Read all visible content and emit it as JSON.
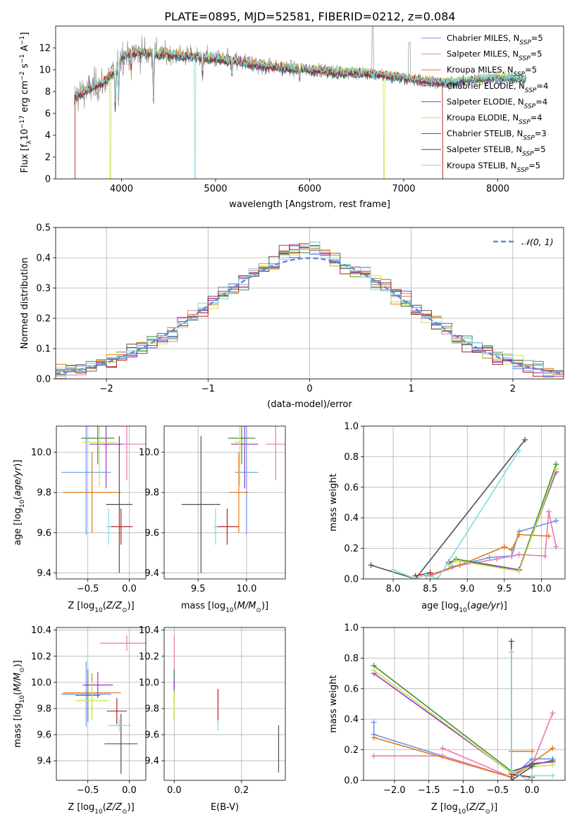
{
  "title": "PLATE=0895, MJD=52581, FIBERID=0212, z=0.084",
  "colors": {
    "chabrier_miles": "#6495ed",
    "salpeter_miles": "#e879b4",
    "kroupa_miles": "#e07b20",
    "chabrier_elodie": "#3e8e3e",
    "salpeter_elodie": "#9932cc",
    "kroupa_elodie": "#c8e64a",
    "chabrier_stelib": "#505050",
    "salpeter_stelib": "#b22222",
    "kroupa_stelib": "#7fdbde",
    "data": "#808080",
    "gauss": "#5b8fd9"
  },
  "chart_data": [
    {
      "panel": "spectrum",
      "type": "line",
      "xlabel": "wavelength [Angstrom, rest frame]",
      "ylabel": "Flux [f_λ 10^-17 erg cm^-2 s^-1 A^-1]",
      "xlim": [
        3300,
        8700
      ],
      "ylim": [
        0,
        14
      ],
      "xticks": [
        4000,
        5000,
        6000,
        7000,
        8000
      ],
      "yticks": [
        0,
        2,
        4,
        6,
        8,
        10,
        12
      ],
      "legend_position": "top-right",
      "legend": [
        {
          "base": "Chabrier MILES, N",
          "sub": "SSP",
          "tail": "=5",
          "color": "chabrier_miles"
        },
        {
          "base": "Salpeter MILES, N",
          "sub": "SSP",
          "tail": "=5",
          "color": "salpeter_miles"
        },
        {
          "base": "Kroupa MILES, N",
          "sub": "SSP",
          "tail": "=5",
          "color": "kroupa_miles"
        },
        {
          "base": "Chabrier ELODIE, N",
          "sub": "SSP",
          "tail": "=4",
          "color": "chabrier_elodie"
        },
        {
          "base": "Salpeter ELODIE, N",
          "sub": "SSP",
          "tail": "=4",
          "color": "salpeter_elodie"
        },
        {
          "base": "Kroupa ELODIE, N",
          "sub": "SSP",
          "tail": "=4",
          "color": "kroupa_elodie"
        },
        {
          "base": "Chabrier STELIB, N",
          "sub": "SSP",
          "tail": "=3",
          "color": "chabrier_stelib"
        },
        {
          "base": "Salpeter STELIB, N",
          "sub": "SSP",
          "tail": "=5",
          "color": "salpeter_stelib"
        },
        {
          "base": "Kroupa STELIB, N",
          "sub": "SSP",
          "tail": "=5",
          "color": "kroupa_stelib"
        }
      ],
      "continuum": {
        "x": [
          3500,
          3600,
          3800,
          3950,
          4000,
          4100,
          4300,
          4500,
          4800,
          5000,
          5200,
          5500,
          5800,
          6000,
          6300,
          6600,
          6900,
          7200,
          7400,
          7600,
          8000,
          8300
        ],
        "y": [
          7.5,
          8.0,
          8.8,
          10.0,
          11.2,
          11.6,
          11.5,
          11.4,
          11.2,
          11.0,
          10.8,
          10.4,
          10.1,
          10.0,
          9.8,
          9.7,
          9.4,
          9.0,
          8.8,
          9.0,
          9.3,
          9.2
        ]
      },
      "absorption_lines": [
        {
          "x": 3934,
          "depth": 4.0
        },
        {
          "x": 3969,
          "depth": 3.0
        },
        {
          "x": 4102,
          "depth": 2.0
        },
        {
          "x": 4340,
          "depth": 4.5
        },
        {
          "x": 4861,
          "depth": 2.0
        },
        {
          "x": 5175,
          "depth": 1.2
        },
        {
          "x": 5893,
          "depth": 1.0
        }
      ],
      "model_dropouts": [
        {
          "x": 3500,
          "series": [
            "kroupa_miles",
            "salpeter_stelib"
          ]
        },
        {
          "x": 3880,
          "series": [
            "kroupa_elodie"
          ]
        },
        {
          "x": 4780,
          "series": [
            "kroupa_stelib"
          ]
        },
        {
          "x": 6790,
          "series": [
            "kroupa_elodie"
          ]
        },
        {
          "x": 7420,
          "series": [
            "kroupa_miles",
            "salpeter_stelib"
          ]
        }
      ]
    },
    {
      "panel": "residuals",
      "type": "histogram",
      "xlabel": "(data-model)/error",
      "ylabel": "Normed distribution",
      "xlim": [
        -2.5,
        2.5
      ],
      "ylim": [
        0,
        0.5
      ],
      "xticks": [
        -2,
        -1,
        0,
        1,
        2
      ],
      "yticks": [
        0.0,
        0.1,
        0.2,
        0.3,
        0.4,
        0.5
      ],
      "bin_width": 0.1,
      "reference": {
        "label": "𝒩(0, 1)",
        "mean": 0,
        "sigma": 1
      },
      "legend_position": "top-right"
    },
    {
      "panel": "age-vs-Z",
      "type": "errorbar",
      "xlabel": "Z [log10(Z/Z☉)]",
      "ylabel": "age [log10(age/yr)]",
      "xlim": [
        -0.88,
        0.2
      ],
      "ylim": [
        9.37,
        10.13
      ],
      "xticks": [
        -0.5,
        0.0
      ],
      "yticks": [
        9.4,
        9.6,
        9.8,
        10.0
      ],
      "points": [
        {
          "s": "chabrier_miles",
          "x": -0.52,
          "xerr": 0.3,
          "y": 9.9,
          "yerr": 0.31
        },
        {
          "s": "salpeter_miles",
          "x": -0.03,
          "xerr": 0.32,
          "y": 10.04,
          "yerr": 0.18
        },
        {
          "s": "kroupa_miles",
          "x": -0.45,
          "xerr": 0.35,
          "y": 9.8,
          "yerr": 0.2
        },
        {
          "s": "chabrier_elodie",
          "x": -0.38,
          "xerr": 0.2,
          "y": 10.07,
          "yerr": 0.13
        },
        {
          "s": "salpeter_elodie",
          "x": -0.28,
          "xerr": 0.2,
          "y": 10.04,
          "yerr": 0.22
        },
        {
          "s": "kroupa_elodie",
          "x": -0.36,
          "xerr": 0.2,
          "y": 10.05,
          "yerr": 0.22
        },
        {
          "s": "chabrier_stelib",
          "x": -0.12,
          "xerr": 0.16,
          "y": 9.74,
          "yerr": 0.34
        },
        {
          "s": "salpeter_stelib",
          "x": -0.1,
          "xerr": 0.14,
          "y": 9.63,
          "yerr": 0.09
        },
        {
          "s": "kroupa_stelib",
          "x": -0.25,
          "xerr": 0.03,
          "y": 9.63,
          "yerr": 0.09
        }
      ]
    },
    {
      "panel": "age-vs-mass",
      "type": "errorbar",
      "xlabel": "mass [log10(M/M☉)]",
      "ylabel": "",
      "xlim": [
        9.15,
        10.4
      ],
      "ylim": [
        9.37,
        10.13
      ],
      "xticks": [
        9.5,
        10.0
      ],
      "yticks": [
        9.4,
        9.6,
        9.8,
        10.0
      ],
      "points": [
        {
          "s": "chabrier_miles",
          "x": 10.0,
          "xerr": 0.12,
          "y": 9.9,
          "yerr": 0.31
        },
        {
          "s": "salpeter_miles",
          "x": 10.3,
          "xerr": 0.1,
          "y": 10.04,
          "yerr": 0.18
        },
        {
          "s": "kroupa_miles",
          "x": 9.92,
          "xerr": 0.1,
          "y": 9.8,
          "yerr": 0.2
        },
        {
          "s": "chabrier_elodie",
          "x": 9.95,
          "xerr": 0.14,
          "y": 10.07,
          "yerr": 0.13
        },
        {
          "s": "salpeter_elodie",
          "x": 9.98,
          "xerr": 0.14,
          "y": 10.04,
          "yerr": 0.22
        },
        {
          "s": "kroupa_elodie",
          "x": 9.93,
          "xerr": 0.06,
          "y": 10.05,
          "yerr": 0.22
        },
        {
          "s": "chabrier_stelib",
          "x": 9.53,
          "xerr": 0.2,
          "y": 9.74,
          "yerr": 0.34
        },
        {
          "s": "salpeter_stelib",
          "x": 9.8,
          "xerr": 0.12,
          "y": 9.63,
          "yerr": 0.09
        },
        {
          "s": "kroupa_stelib",
          "x": 9.68,
          "xerr": 0.02,
          "y": 9.63,
          "yerr": 0.09
        }
      ]
    },
    {
      "panel": "weight-vs-age",
      "type": "line",
      "xlabel": "age [log10(age/yr)]",
      "ylabel": "mass weight",
      "xlim": [
        7.6,
        10.32
      ],
      "ylim": [
        0,
        1
      ],
      "xticks": [
        8.0,
        8.5,
        9.0,
        9.5,
        10.0
      ],
      "yticks": [
        0.0,
        0.2,
        0.4,
        0.6,
        0.8,
        1.0
      ],
      "series": [
        {
          "s": "chabrier_miles",
          "x": [
            8.5,
            8.8,
            9.3,
            9.6,
            9.7,
            10.2
          ],
          "y": [
            0.02,
            0.08,
            0.14,
            0.15,
            0.31,
            0.38
          ]
        },
        {
          "s": "salpeter_miles",
          "x": [
            8.5,
            8.9,
            9.4,
            9.7,
            10.05,
            10.1,
            10.2
          ],
          "y": [
            0.02,
            0.09,
            0.13,
            0.16,
            0.15,
            0.44,
            0.21
          ]
        },
        {
          "s": "kroupa_miles",
          "x": [
            8.45,
            8.9,
            9.5,
            9.6,
            9.7,
            10.1
          ],
          "y": [
            0.02,
            0.09,
            0.21,
            0.19,
            0.29,
            0.28
          ]
        },
        {
          "s": "chabrier_elodie",
          "x": [
            8.75,
            8.85,
            9.7,
            10.2
          ],
          "y": [
            0.1,
            0.13,
            0.06,
            0.75
          ]
        },
        {
          "s": "salpeter_elodie",
          "x": [
            8.75,
            8.85,
            9.7,
            10.2
          ],
          "y": [
            0.11,
            0.12,
            0.06,
            0.7
          ]
        },
        {
          "s": "kroupa_elodie",
          "x": [
            8.75,
            8.85,
            9.7,
            10.2
          ],
          "y": [
            0.09,
            0.12,
            0.05,
            0.72
          ]
        },
        {
          "s": "chabrier_stelib",
          "x": [
            7.7,
            8.3,
            9.78
          ],
          "y": [
            0.09,
            0.0,
            0.91
          ]
        },
        {
          "s": "salpeter_stelib",
          "x": [
            8.3,
            8.5
          ],
          "y": [
            0.02,
            0.04
          ]
        },
        {
          "s": "kroupa_stelib",
          "x": [
            8.0,
            8.3,
            8.45,
            8.6,
            9.7
          ],
          "y": [
            0.06,
            0.0,
            0.03,
            0.0,
            0.84
          ]
        }
      ]
    },
    {
      "panel": "mass-vs-Z",
      "type": "errorbar",
      "xlabel": "Z [log10(Z/Z☉)]",
      "ylabel": "mass [log10(M/M☉)]",
      "xlim": [
        -0.88,
        0.2
      ],
      "ylim": [
        9.25,
        10.42
      ],
      "xticks": [
        -0.5,
        0.0
      ],
      "yticks": [
        9.4,
        9.6,
        9.8,
        10.0,
        10.2,
        10.4
      ],
      "points": [
        {
          "s": "chabrier_miles",
          "x": -0.52,
          "xerr": 0.3,
          "y": 9.91,
          "yerr": 0.25
        },
        {
          "s": "salpeter_miles",
          "x": -0.03,
          "xerr": 0.32,
          "y": 10.3,
          "yerr": 0.06
        },
        {
          "s": "kroupa_miles",
          "x": -0.45,
          "xerr": 0.35,
          "y": 9.92,
          "yerr": 0.15
        },
        {
          "s": "chabrier_elodie",
          "x": -0.5,
          "xerr": 0.15,
          "y": 9.9,
          "yerr": 0.2
        },
        {
          "s": "salpeter_elodie",
          "x": -0.38,
          "xerr": 0.18,
          "y": 9.98,
          "yerr": 0.1
        },
        {
          "s": "kroupa_elodie",
          "x": -0.45,
          "xerr": 0.2,
          "y": 9.86,
          "yerr": 0.15
        },
        {
          "s": "chabrier_stelib",
          "x": -0.1,
          "xerr": 0.2,
          "y": 9.53,
          "yerr": 0.23
        },
        {
          "s": "salpeter_stelib",
          "x": -0.15,
          "xerr": 0.12,
          "y": 9.78,
          "yerr": 0.1
        },
        {
          "s": "kroupa_stelib",
          "x": -0.12,
          "xerr": 0.14,
          "y": 9.67,
          "yerr": 0.05
        }
      ]
    },
    {
      "panel": "mass-vs-EBV",
      "type": "errorbar",
      "xlabel": "E(B-V)",
      "ylabel": "",
      "xlim": [
        -0.03,
        0.33
      ],
      "ylim": [
        9.25,
        10.42
      ],
      "xticks": [
        0.0,
        0.2
      ],
      "yticks": [
        9.4,
        9.6,
        9.8,
        10.0,
        10.2,
        10.4
      ],
      "points": [
        {
          "s": "chabrier_miles",
          "x": 0.0,
          "xerr": 0,
          "y": 9.98,
          "yerr": 0.06
        },
        {
          "s": "salpeter_miles",
          "x": 0.0,
          "xerr": 0,
          "y": 10.2,
          "yerr": 0.16
        },
        {
          "s": "kroupa_miles",
          "x": 0.0,
          "xerr": 0,
          "y": 9.97,
          "yerr": 0.04
        },
        {
          "s": "chabrier_elodie",
          "x": 0.0,
          "xerr": 0,
          "y": 9.9,
          "yerr": 0.2
        },
        {
          "s": "salpeter_elodie",
          "x": 0.0,
          "xerr": 0,
          "y": 9.98,
          "yerr": 0.05
        },
        {
          "s": "kroupa_elodie",
          "x": 0.0,
          "xerr": 0,
          "y": 9.82,
          "yerr": 0.12
        },
        {
          "s": "chabrier_stelib",
          "x": 0.31,
          "xerr": 0,
          "y": 9.49,
          "yerr": 0.18
        },
        {
          "s": "salpeter_stelib",
          "x": 0.13,
          "xerr": 0,
          "y": 9.82,
          "yerr": 0.13
        },
        {
          "s": "kroupa_stelib",
          "x": 0.13,
          "xerr": 0,
          "y": 9.67,
          "yerr": 0.04
        }
      ]
    },
    {
      "panel": "weight-vs-Z",
      "type": "line",
      "xlabel": "Z [log10(Z/Z☉)]",
      "ylabel": "mass weight",
      "xlim": [
        -2.45,
        0.48
      ],
      "ylim": [
        0,
        1
      ],
      "xticks": [
        -2.0,
        -1.5,
        -1.0,
        -0.5,
        0.0
      ],
      "yticks": [
        0.0,
        0.2,
        0.4,
        0.6,
        0.8,
        1.0
      ],
      "series": [
        {
          "s": "chabrier_miles",
          "x": [
            -2.3,
            -0.3,
            0.0,
            0.3
          ],
          "y": [
            0.3,
            0.02,
            0.14,
            0.14
          ]
        },
        {
          "s": "chabrier_miles",
          "x": [
            -2.3,
            -2.3
          ],
          "y": [
            0.38,
            0.3
          ]
        },
        {
          "s": "salpeter_miles",
          "x": [
            -2.3,
            -1.3,
            -0.3,
            0.0,
            0.3
          ],
          "y": [
            0.16,
            0.16,
            0.02,
            0.1,
            0.44
          ]
        },
        {
          "s": "salpeter_miles",
          "x": [
            -1.3,
            -0.3
          ],
          "y": [
            0.21,
            0.02
          ]
        },
        {
          "s": "kroupa_miles",
          "x": [
            -2.3,
            -0.3,
            0.3
          ],
          "y": [
            0.28,
            0.02,
            0.21
          ]
        },
        {
          "s": "kroupa_miles",
          "x": [
            -0.3,
            0.0
          ],
          "y": [
            0.19,
            0.19
          ]
        },
        {
          "s": "chabrier_elodie",
          "x": [
            -2.3,
            -0.3,
            0.0,
            0.3
          ],
          "y": [
            0.75,
            0.06,
            0.1,
            0.13
          ]
        },
        {
          "s": "salpeter_elodie",
          "x": [
            -2.3,
            -0.3,
            0.0,
            0.3
          ],
          "y": [
            0.7,
            0.05,
            0.11,
            0.12
          ]
        },
        {
          "s": "kroupa_elodie",
          "x": [
            -2.3,
            -0.3,
            0.0,
            0.3
          ],
          "y": [
            0.72,
            0.05,
            0.09,
            0.1
          ]
        },
        {
          "s": "chabrier_stelib",
          "x": [
            -0.3,
            -0.3,
            0.0
          ],
          "y": [
            0.91,
            0.0,
            0.09
          ]
        },
        {
          "s": "salpeter_stelib",
          "x": [
            -0.3,
            0.0
          ],
          "y": [
            0.04,
            0.02
          ]
        },
        {
          "s": "kroupa_stelib",
          "x": [
            -0.3,
            -0.3,
            -0.05,
            0.0,
            0.3
          ],
          "y": [
            0.84,
            0.06,
            0.0,
            0.03,
            0.03
          ]
        }
      ]
    }
  ]
}
